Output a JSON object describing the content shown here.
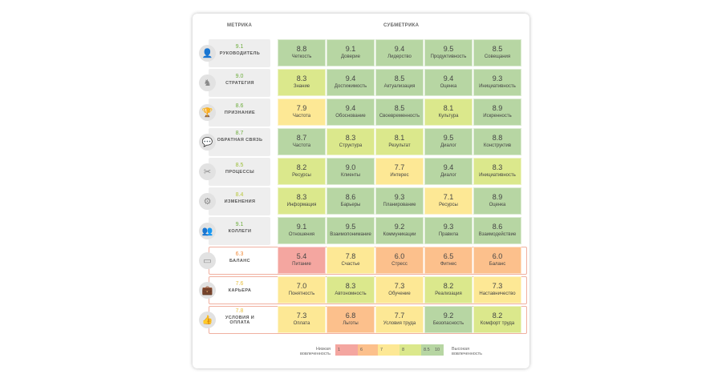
{
  "headers": {
    "metric": "МЕТРИКА",
    "submetric": "СУБМЕТРИКА"
  },
  "colors": {
    "red": "#f4a6a0",
    "orange": "#fcc08c",
    "yellow": "#fde895",
    "lightgreen": "#dbe88c",
    "green": "#b7d6a3"
  },
  "rows": [
    {
      "score": "9.1",
      "score_color": "#6fae3f",
      "name": "РУКОВОДИТЕЛЬ",
      "icon": "person-icon",
      "glyph": "👤",
      "warn": false,
      "cells": [
        {
          "v": "8.8",
          "l": "Четкость",
          "c": "#b7d6a3"
        },
        {
          "v": "9.1",
          "l": "Доверие",
          "c": "#b7d6a3"
        },
        {
          "v": "9.4",
          "l": "Лидерство",
          "c": "#b7d6a3"
        },
        {
          "v": "9.5",
          "l": "Продуктивность",
          "c": "#b7d6a3"
        },
        {
          "v": "8.5",
          "l": "Совещания",
          "c": "#b7d6a3"
        }
      ]
    },
    {
      "score": "9.0",
      "score_color": "#6fae3f",
      "name": "СТРАТЕГИЯ",
      "icon": "chess-knight-icon",
      "glyph": "♞",
      "warn": false,
      "cells": [
        {
          "v": "8.3",
          "l": "Знание",
          "c": "#dbe88c"
        },
        {
          "v": "9.4",
          "l": "Достижимость",
          "c": "#b7d6a3"
        },
        {
          "v": "8.5",
          "l": "Актуализация",
          "c": "#b7d6a3"
        },
        {
          "v": "9.4",
          "l": "Оценка",
          "c": "#b7d6a3"
        },
        {
          "v": "9.3",
          "l": "Инициативность",
          "c": "#b7d6a3"
        }
      ]
    },
    {
      "score": "8.6",
      "score_color": "#6fae3f",
      "name": "ПРИЗНАНИЕ",
      "icon": "trophy-icon",
      "glyph": "🏆",
      "warn": false,
      "cells": [
        {
          "v": "7.9",
          "l": "Частота",
          "c": "#fde895"
        },
        {
          "v": "9.4",
          "l": "Обоснование",
          "c": "#b7d6a3"
        },
        {
          "v": "8.5",
          "l": "Своевременность",
          "c": "#b7d6a3"
        },
        {
          "v": "8.1",
          "l": "Культура",
          "c": "#dbe88c"
        },
        {
          "v": "8.9",
          "l": "Искренность",
          "c": "#b7d6a3"
        }
      ]
    },
    {
      "score": "8.7",
      "score_color": "#6fae3f",
      "name": "ОБРАТНАЯ СВЯЗЬ",
      "icon": "chat-icon",
      "glyph": "💬",
      "warn": false,
      "cells": [
        {
          "v": "8.7",
          "l": "Частота",
          "c": "#b7d6a3"
        },
        {
          "v": "8.3",
          "l": "Структура",
          "c": "#dbe88c"
        },
        {
          "v": "8.1",
          "l": "Результат",
          "c": "#dbe88c"
        },
        {
          "v": "9.5",
          "l": "Диалог",
          "c": "#b7d6a3"
        },
        {
          "v": "8.8",
          "l": "Конструктив",
          "c": "#b7d6a3"
        }
      ]
    },
    {
      "score": "8.5",
      "score_color": "#9cbf3a",
      "name": "ПРОЦЕССЫ",
      "icon": "tools-icon",
      "glyph": "✂",
      "warn": false,
      "cells": [
        {
          "v": "8.2",
          "l": "Ресурсы",
          "c": "#dbe88c"
        },
        {
          "v": "9.0",
          "l": "Клиенты",
          "c": "#b7d6a3"
        },
        {
          "v": "7.7",
          "l": "Интерес",
          "c": "#fde895"
        },
        {
          "v": "9.4",
          "l": "Диалог",
          "c": "#b7d6a3"
        },
        {
          "v": "8.3",
          "l": "Инициативность",
          "c": "#dbe88c"
        }
      ]
    },
    {
      "score": "8.4",
      "score_color": "#b9c83c",
      "name": "ИЗМЕНЕНИЯ",
      "icon": "head-gears-icon",
      "glyph": "⚙",
      "warn": false,
      "cells": [
        {
          "v": "8.3",
          "l": "Информация",
          "c": "#dbe88c"
        },
        {
          "v": "8.6",
          "l": "Барьеры",
          "c": "#b7d6a3"
        },
        {
          "v": "9.3",
          "l": "Планирование",
          "c": "#b7d6a3"
        },
        {
          "v": "7.1",
          "l": "Ресурсы",
          "c": "#fde895"
        },
        {
          "v": "8.9",
          "l": "Оценка",
          "c": "#b7d6a3"
        }
      ]
    },
    {
      "score": "9.1",
      "score_color": "#6fae3f",
      "name": "КОЛЛЕГИ",
      "icon": "group-icon",
      "glyph": "👥",
      "warn": false,
      "cells": [
        {
          "v": "9.1",
          "l": "Отношения",
          "c": "#b7d6a3"
        },
        {
          "v": "9.5",
          "l": "Взаимопонимание",
          "c": "#b7d6a3"
        },
        {
          "v": "9.2",
          "l": "Коммуникации",
          "c": "#b7d6a3"
        },
        {
          "v": "9.3",
          "l": "Правила",
          "c": "#b7d6a3"
        },
        {
          "v": "8.6",
          "l": "Взаимодействие",
          "c": "#b7d6a3"
        }
      ]
    },
    {
      "score": "6.3",
      "score_color": "#f08a3c",
      "name": "БАЛАНС",
      "icon": "battery-icon",
      "glyph": "▭",
      "warn": true,
      "cells": [
        {
          "v": "5.4",
          "l": "Питание",
          "c": "#f4a6a0"
        },
        {
          "v": "7.8",
          "l": "Счастье",
          "c": "#fde895"
        },
        {
          "v": "6.0",
          "l": "Стресс",
          "c": "#fcc08c"
        },
        {
          "v": "6.5",
          "l": "Фитнес",
          "c": "#fcc08c"
        },
        {
          "v": "6.0",
          "l": "Баланс",
          "c": "#fcc08c"
        }
      ]
    },
    {
      "score": "7.6",
      "score_color": "#e8c040",
      "name": "КАРЬЕРА",
      "icon": "briefcase-icon",
      "glyph": "💼",
      "warn": true,
      "cells": [
        {
          "v": "7.0",
          "l": "Понятность",
          "c": "#fde895"
        },
        {
          "v": "8.3",
          "l": "Автономность",
          "c": "#dbe88c"
        },
        {
          "v": "7.3",
          "l": "Обучение",
          "c": "#fde895"
        },
        {
          "v": "8.2",
          "l": "Реализация",
          "c": "#dbe88c"
        },
        {
          "v": "7.3",
          "l": "Наставничество",
          "c": "#fde895"
        }
      ]
    },
    {
      "score": "7.8",
      "score_color": "#e8c040",
      "name": "УСЛОВИЯ И ОПЛАТА",
      "icon": "thumbs-up-icon",
      "glyph": "👍",
      "warn": true,
      "cells": [
        {
          "v": "7.3",
          "l": "Оплата",
          "c": "#fde895"
        },
        {
          "v": "6.8",
          "l": "Льготы",
          "c": "#fcc08c"
        },
        {
          "v": "7.7",
          "l": "Условия труда",
          "c": "#fde895"
        },
        {
          "v": "9.2",
          "l": "Безопасность",
          "c": "#b7d6a3"
        },
        {
          "v": "8.2",
          "l": "Комфорт труда",
          "c": "#dbe88c"
        }
      ]
    }
  ],
  "legend": {
    "low": "Низкая вовлеченность",
    "high": "Высокая вовлеченность",
    "segments": [
      {
        "label": "1",
        "c": "#f4a6a0"
      },
      {
        "label": "6",
        "c": "#fcc08c"
      },
      {
        "label": "7",
        "c": "#fde895"
      },
      {
        "label": "8",
        "c": "#dbe88c"
      },
      {
        "label": "8.5",
        "c": "#b7d6a3"
      },
      {
        "label": "10",
        "c": "#b7d6a3"
      }
    ]
  }
}
